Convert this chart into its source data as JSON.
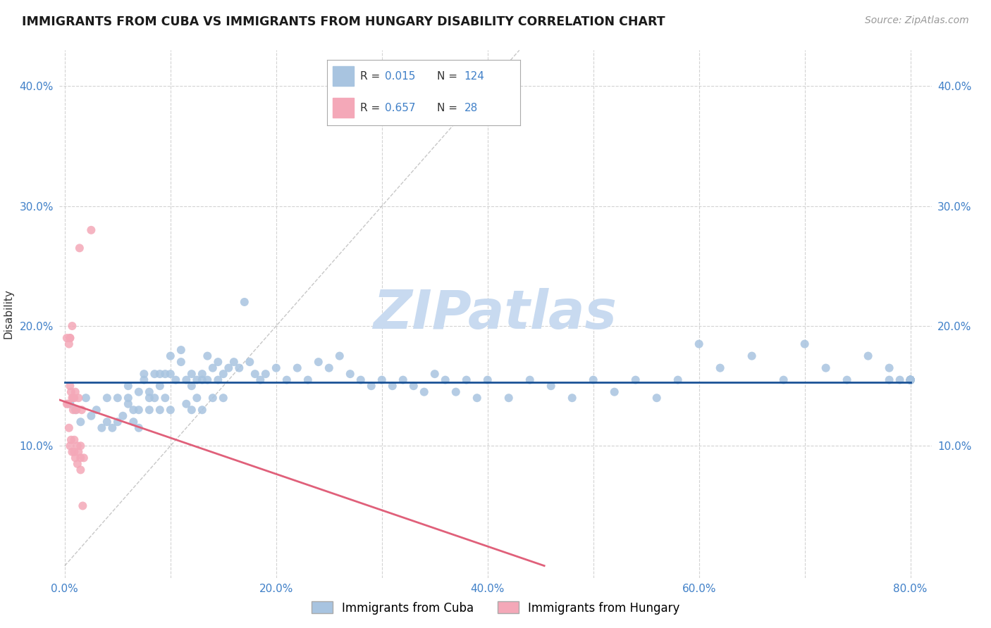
{
  "title": "IMMIGRANTS FROM CUBA VS IMMIGRANTS FROM HUNGARY DISABILITY CORRELATION CHART",
  "source": "Source: ZipAtlas.com",
  "ylabel": "Disability",
  "xlim": [
    -0.005,
    0.82
  ],
  "ylim": [
    -0.01,
    0.43
  ],
  "xticks": [
    0.0,
    0.1,
    0.2,
    0.3,
    0.4,
    0.5,
    0.6,
    0.7,
    0.8
  ],
  "xticklabels": [
    "0.0%",
    "",
    "20.0%",
    "",
    "40.0%",
    "",
    "60.0%",
    "",
    "80.0%"
  ],
  "yticks": [
    0.1,
    0.2,
    0.3,
    0.4
  ],
  "yticklabels": [
    "10.0%",
    "20.0%",
    "30.0%",
    "40.0%"
  ],
  "cuba_R": 0.015,
  "cuba_N": 124,
  "hungary_R": 0.657,
  "hungary_N": 28,
  "cuba_color": "#a8c4e0",
  "hungary_color": "#f4a8b8",
  "cuba_line_color": "#1a5296",
  "hungary_line_color": "#e0607a",
  "background_color": "#ffffff",
  "grid_color": "#c8c8c8",
  "title_color": "#1a1a1a",
  "axis_label_color": "#333333",
  "tick_label_color": "#4080c8",
  "watermark_color": "#c8daf0",
  "cuba_x": [
    0.005,
    0.01,
    0.015,
    0.02,
    0.025,
    0.03,
    0.035,
    0.04,
    0.04,
    0.045,
    0.05,
    0.05,
    0.055,
    0.06,
    0.06,
    0.06,
    0.065,
    0.065,
    0.07,
    0.07,
    0.07,
    0.075,
    0.075,
    0.08,
    0.08,
    0.08,
    0.085,
    0.085,
    0.09,
    0.09,
    0.09,
    0.095,
    0.095,
    0.1,
    0.1,
    0.1,
    0.105,
    0.11,
    0.11,
    0.115,
    0.115,
    0.12,
    0.12,
    0.12,
    0.125,
    0.125,
    0.13,
    0.13,
    0.13,
    0.135,
    0.135,
    0.14,
    0.14,
    0.145,
    0.145,
    0.15,
    0.15,
    0.155,
    0.16,
    0.165,
    0.17,
    0.175,
    0.18,
    0.185,
    0.19,
    0.2,
    0.21,
    0.22,
    0.23,
    0.24,
    0.25,
    0.26,
    0.27,
    0.28,
    0.29,
    0.3,
    0.31,
    0.32,
    0.33,
    0.34,
    0.35,
    0.36,
    0.37,
    0.38,
    0.39,
    0.4,
    0.42,
    0.44,
    0.46,
    0.48,
    0.5,
    0.52,
    0.54,
    0.56,
    0.58,
    0.6,
    0.62,
    0.65,
    0.68,
    0.7,
    0.72,
    0.74,
    0.76,
    0.78,
    0.78,
    0.79,
    0.8,
    0.8,
    0.8,
    0.8,
    0.8,
    0.8,
    0.8,
    0.8,
    0.8,
    0.8,
    0.8,
    0.8,
    0.8,
    0.8,
    0.8,
    0.8,
    0.8,
    0.8
  ],
  "cuba_y": [
    0.135,
    0.13,
    0.12,
    0.14,
    0.125,
    0.13,
    0.115,
    0.12,
    0.14,
    0.115,
    0.14,
    0.12,
    0.125,
    0.135,
    0.14,
    0.15,
    0.13,
    0.12,
    0.115,
    0.13,
    0.145,
    0.155,
    0.16,
    0.145,
    0.14,
    0.13,
    0.16,
    0.14,
    0.16,
    0.15,
    0.13,
    0.16,
    0.14,
    0.175,
    0.16,
    0.13,
    0.155,
    0.18,
    0.17,
    0.155,
    0.135,
    0.16,
    0.15,
    0.13,
    0.155,
    0.14,
    0.16,
    0.155,
    0.13,
    0.155,
    0.175,
    0.165,
    0.14,
    0.17,
    0.155,
    0.16,
    0.14,
    0.165,
    0.17,
    0.165,
    0.22,
    0.17,
    0.16,
    0.155,
    0.16,
    0.165,
    0.155,
    0.165,
    0.155,
    0.17,
    0.165,
    0.175,
    0.16,
    0.155,
    0.15,
    0.155,
    0.15,
    0.155,
    0.15,
    0.145,
    0.16,
    0.155,
    0.145,
    0.155,
    0.14,
    0.155,
    0.14,
    0.155,
    0.15,
    0.14,
    0.155,
    0.145,
    0.155,
    0.14,
    0.155,
    0.185,
    0.165,
    0.175,
    0.155,
    0.185,
    0.165,
    0.155,
    0.175,
    0.155,
    0.165,
    0.155,
    0.155,
    0.155,
    0.155,
    0.155,
    0.155,
    0.155,
    0.155,
    0.155,
    0.155,
    0.155,
    0.155,
    0.155,
    0.155,
    0.155,
    0.155,
    0.155,
    0.155,
    0.155
  ],
  "hungary_x": [
    0.002,
    0.002,
    0.003,
    0.004,
    0.004,
    0.005,
    0.005,
    0.005,
    0.006,
    0.006,
    0.007,
    0.007,
    0.008,
    0.008,
    0.009,
    0.009,
    0.01,
    0.01,
    0.011,
    0.012,
    0.012,
    0.013,
    0.013,
    0.014,
    0.015,
    0.015,
    0.016,
    0.017
  ],
  "hungary_y": [
    0.19,
    0.135,
    0.135,
    0.185,
    0.115,
    0.19,
    0.15,
    0.1,
    0.145,
    0.105,
    0.14,
    0.095,
    0.14,
    0.13,
    0.14,
    0.105,
    0.145,
    0.09,
    0.13,
    0.1,
    0.085,
    0.14,
    0.095,
    0.265,
    0.09,
    0.08,
    0.13,
    0.05
  ],
  "hungary_extra_x": [
    0.005,
    0.007,
    0.009,
    0.015,
    0.018,
    0.025
  ],
  "hungary_extra_y": [
    0.19,
    0.2,
    0.095,
    0.1,
    0.09,
    0.28
  ]
}
